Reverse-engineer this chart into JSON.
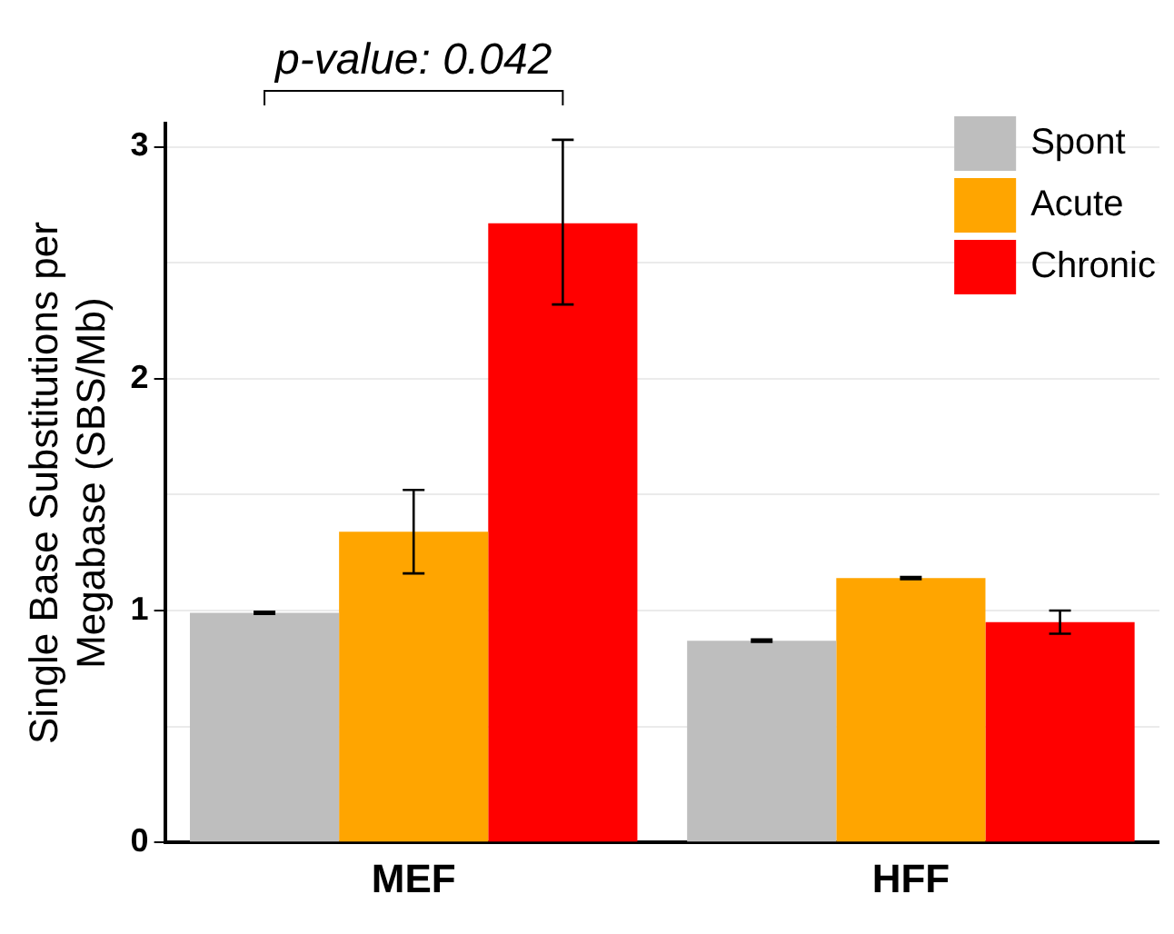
{
  "chart_data": {
    "type": "bar",
    "ylabel": "Single Base Substitutions per Megabase (SBS/Mb)",
    "categories": [
      "MEF",
      "HFF"
    ],
    "series": [
      {
        "name": "Spont",
        "color": "#bebebe",
        "values": [
          0.99,
          0.87
        ],
        "errors": [
          [
            0.985,
            0.995
          ],
          [
            0.865,
            0.875
          ]
        ]
      },
      {
        "name": "Acute",
        "color": "#ffa500",
        "values": [
          1.34,
          1.14
        ],
        "errors": [
          [
            1.16,
            1.52
          ],
          [
            1.135,
            1.145
          ]
        ]
      },
      {
        "name": "Chronic",
        "color": "#ff0000",
        "values": [
          2.67,
          0.95
        ],
        "errors": [
          [
            2.32,
            3.03
          ],
          [
            0.9,
            1.0
          ]
        ]
      }
    ],
    "ylim": [
      0,
      3.1
    ],
    "yticks": [
      0,
      {
        "value": 0.5,
        "label": null
      },
      1,
      {
        "value": 1.5,
        "label": null
      },
      2,
      {
        "value": 2.5,
        "label": null
      },
      3
    ],
    "grid": "y",
    "legend": "top right",
    "annotations": [
      "p-value: 0.042"
    ]
  }
}
